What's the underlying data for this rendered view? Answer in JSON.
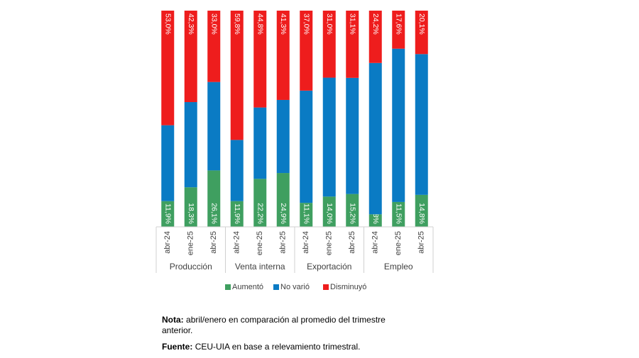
{
  "chart_data": {
    "type": "stacked_bar_100",
    "categories": [
      "abr-24",
      "ene-25",
      "abr-25",
      "abr-24",
      "ene-25",
      "abr-25",
      "abr-24",
      "ene-25",
      "abr-25",
      "abr-24",
      "ene-25",
      "abr-25"
    ],
    "groups": [
      "Producción",
      "Venta interna",
      "Exportación",
      "Empleo"
    ],
    "group_size": 3,
    "ylim": [
      0,
      100
    ],
    "series": [
      {
        "name": "Aumentó",
        "color": "#3f9f60",
        "values": [
          11.9,
          18.3,
          26.1,
          11.9,
          22.2,
          24.9,
          11.1,
          14.0,
          15.2,
          5.8,
          11.5,
          14.8
        ],
        "value_labels": [
          "11,9%",
          "18,3%",
          "26,1%",
          "11,9%",
          "22,2%",
          "24,9%",
          "11,1%",
          "14,0%",
          "15,2%",
          "5,8%",
          "11,5%",
          "14,8%"
        ]
      },
      {
        "name": "No varió",
        "color": "#0a7bc4",
        "values": [
          35.1,
          39.4,
          40.9,
          28.3,
          33.0,
          33.8,
          51.9,
          55.0,
          53.7,
          70.0,
          70.9,
          65.1
        ]
      },
      {
        "name": "Disminuyó",
        "color": "#ee1d1d",
        "values": [
          53.0,
          42.3,
          33.0,
          59.8,
          44.8,
          41.3,
          37.0,
          31.0,
          31.1,
          24.2,
          17.6,
          20.1
        ],
        "value_labels": [
          "53,0%",
          "42,3%",
          "33,0%",
          "59,8%",
          "44,8%",
          "41,3%",
          "37,0%",
          "31,0%",
          "31,1%",
          "24,2%",
          "17,6%",
          "20,1%"
        ]
      }
    ],
    "notes": [
      {
        "label": "Nota:",
        "text": "abril/enero en comparación al promedio del trimestre anterior."
      },
      {
        "label": "Fuente:",
        "text": "CEU-UIA en base a relevamiento trimestral."
      }
    ]
  }
}
